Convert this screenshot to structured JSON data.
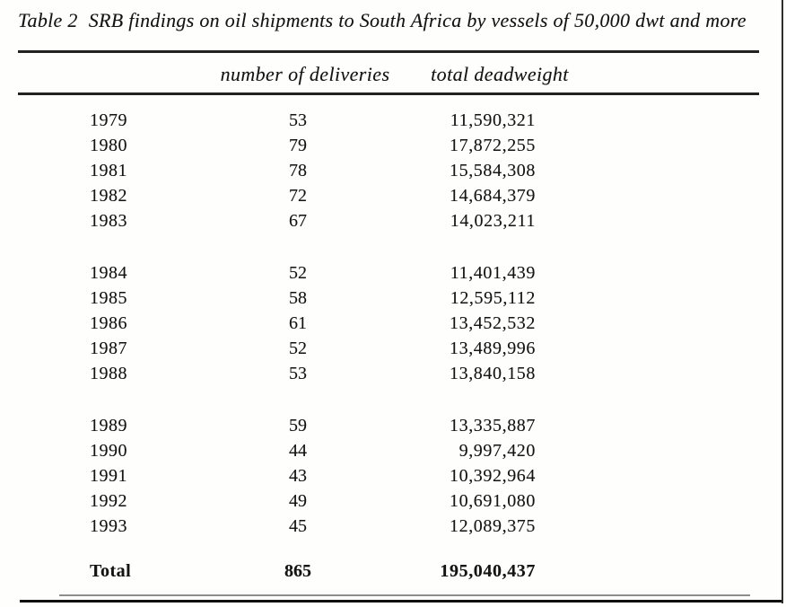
{
  "title": {
    "label": "Table 2",
    "caption": "SRB findings on oil shipments to South Africa by vessels of 50,000 dwt and more"
  },
  "table": {
    "header": {
      "deliveries": "number of deliveries",
      "deadweight": "total deadweight"
    },
    "groups": [
      {
        "rows": [
          {
            "year": "1979",
            "deliveries": "53",
            "deadweight": "11,590,321"
          },
          {
            "year": "1980",
            "deliveries": "79",
            "deadweight": "17,872,255"
          },
          {
            "year": "1981",
            "deliveries": "78",
            "deadweight": "15,584,308"
          },
          {
            "year": "1982",
            "deliveries": "72",
            "deadweight": "14,684,379"
          },
          {
            "year": "1983",
            "deliveries": "67",
            "deadweight": "14,023,211"
          }
        ]
      },
      {
        "rows": [
          {
            "year": "1984",
            "deliveries": "52",
            "deadweight": "11,401,439"
          },
          {
            "year": "1985",
            "deliveries": "58",
            "deadweight": "12,595,112"
          },
          {
            "year": "1986",
            "deliveries": "61",
            "deadweight": "13,452,532"
          },
          {
            "year": "1987",
            "deliveries": "52",
            "deadweight": "13,489,996"
          },
          {
            "year": "1988",
            "deliveries": "53",
            "deadweight": "13,840,158"
          }
        ]
      },
      {
        "rows": [
          {
            "year": "1989",
            "deliveries": "59",
            "deadweight": "13,335,887"
          },
          {
            "year": "1990",
            "deliveries": "44",
            "deadweight": "9,997,420"
          },
          {
            "year": "1991",
            "deliveries": "43",
            "deadweight": "10,392,964"
          },
          {
            "year": "1992",
            "deliveries": "49",
            "deadweight": "10,691,080"
          },
          {
            "year": "1993",
            "deliveries": "45",
            "deadweight": "12,089,375"
          }
        ]
      }
    ],
    "total": {
      "label": "Total",
      "deliveries": "865",
      "deadweight": "195,040,437"
    }
  }
}
